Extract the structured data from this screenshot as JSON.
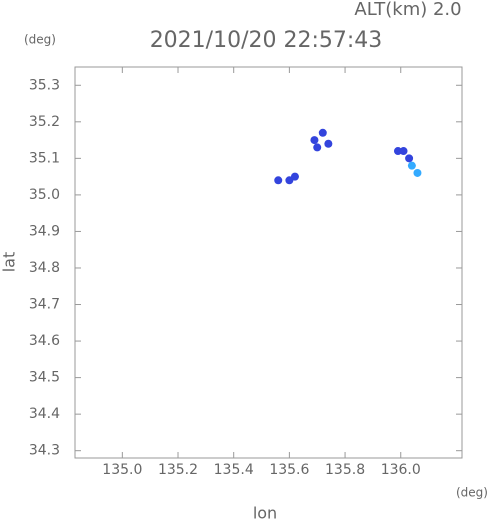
{
  "chart_data": {
    "type": "scatter",
    "title": "2021/10/20 22:57:43",
    "annotation": "ALT(km)  2.0",
    "y_unit": "(deg)",
    "x_unit": "(deg)",
    "x_label": "lon",
    "y_label": "lat",
    "xlim": [
      134.83,
      136.22
    ],
    "ylim": [
      34.28,
      35.35
    ],
    "xticks": [
      {
        "value": 135,
        "label": "135.0"
      },
      135.2,
      135.4,
      135.6,
      135.8,
      {
        "value": 136,
        "label": "136.0"
      }
    ],
    "yticks": [
      34.3,
      34.4,
      34.5,
      34.6,
      34.7,
      34.8,
      34.9,
      {
        "value": 35,
        "label": "35.0"
      },
      35.1,
      35.2,
      35.3
    ],
    "series": [
      {
        "color": "#3344dd",
        "x": [
          135.56,
          135.6,
          135.62,
          135.69,
          135.7,
          135.72,
          135.74,
          135.99,
          136.01,
          136.03
        ],
        "values": [
          35.04,
          35.04,
          35.05,
          35.15,
          35.13,
          35.17,
          35.14,
          35.12,
          35.12,
          35.1
        ]
      },
      {
        "color": "#33aaff",
        "x": [
          136.04,
          136.06
        ],
        "values": [
          35.08,
          35.06
        ]
      }
    ]
  }
}
